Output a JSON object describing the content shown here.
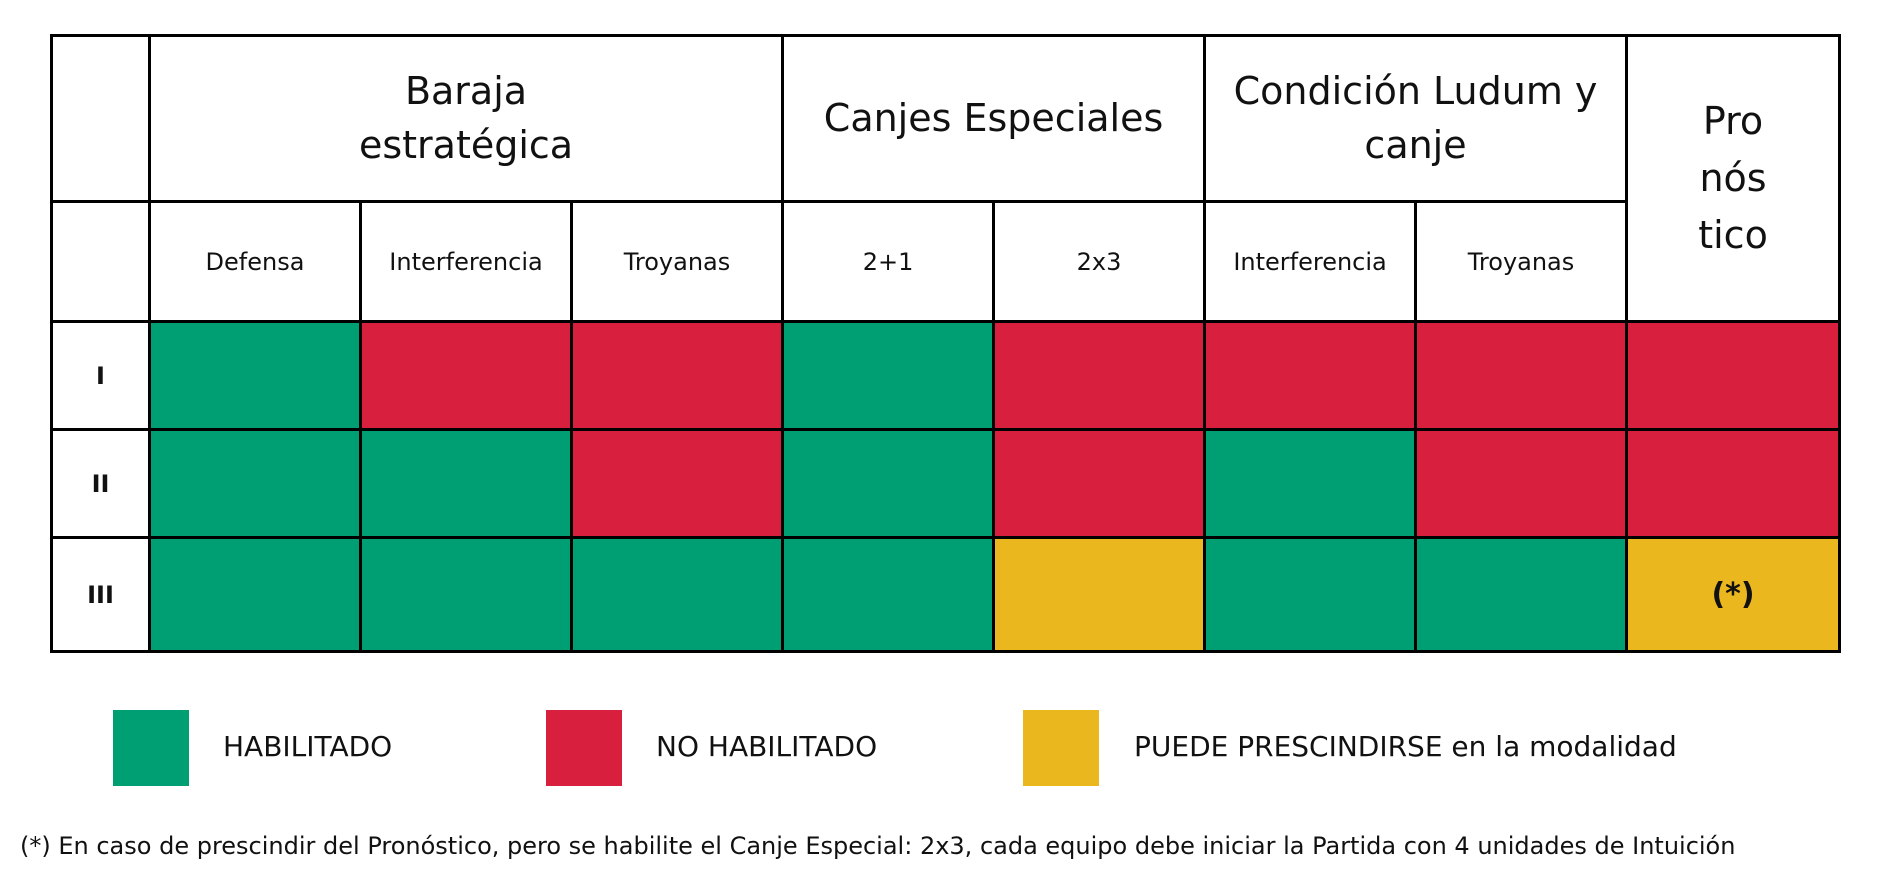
{
  "colors": {
    "habilitado": "#009e73",
    "no_habilitado": "#d91f3e",
    "puede_prescindirse": "#ebb71f"
  },
  "table": {
    "groups": {
      "baraja": "Baraja estratégica",
      "canjes": "Canjes Especiales",
      "condicion": "Condición Ludum y canje",
      "pronostico": "Pro nós tico"
    },
    "columns": [
      "Defensa",
      "Interferencia",
      "Troyanas",
      "2+1",
      "2x3",
      "Interferencia",
      "Troyanas"
    ],
    "rows": [
      {
        "label": "I",
        "cells": [
          {
            "status": "habilitado",
            "text": ""
          },
          {
            "status": "no_habilitado",
            "text": ""
          },
          {
            "status": "no_habilitado",
            "text": ""
          },
          {
            "status": "habilitado",
            "text": ""
          },
          {
            "status": "no_habilitado",
            "text": ""
          },
          {
            "status": "no_habilitado",
            "text": ""
          },
          {
            "status": "no_habilitado",
            "text": ""
          },
          {
            "status": "no_habilitado",
            "text": ""
          }
        ]
      },
      {
        "label": "II",
        "cells": [
          {
            "status": "habilitado",
            "text": ""
          },
          {
            "status": "habilitado",
            "text": ""
          },
          {
            "status": "no_habilitado",
            "text": ""
          },
          {
            "status": "habilitado",
            "text": ""
          },
          {
            "status": "no_habilitado",
            "text": ""
          },
          {
            "status": "habilitado",
            "text": ""
          },
          {
            "status": "no_habilitado",
            "text": ""
          },
          {
            "status": "no_habilitado",
            "text": ""
          }
        ]
      },
      {
        "label": "III",
        "cells": [
          {
            "status": "habilitado",
            "text": ""
          },
          {
            "status": "habilitado",
            "text": ""
          },
          {
            "status": "habilitado",
            "text": ""
          },
          {
            "status": "habilitado",
            "text": ""
          },
          {
            "status": "puede_prescindirse",
            "text": ""
          },
          {
            "status": "habilitado",
            "text": ""
          },
          {
            "status": "habilitado",
            "text": ""
          },
          {
            "status": "puede_prescindirse",
            "text": "(*)"
          }
        ]
      }
    ]
  },
  "legend": [
    {
      "status": "habilitado",
      "label": "HABILITADO"
    },
    {
      "status": "no_habilitado",
      "label": "NO HABILITADO"
    },
    {
      "status": "puede_prescindirse",
      "label": "PUEDE PRESCINDIRSE en la modalidad"
    }
  ],
  "footnote": "(*) En caso de prescindir del Pronóstico, pero se habilite el Canje Especial: 2x3, cada equipo debe iniciar la Partida con 4 unidades de Intuición"
}
